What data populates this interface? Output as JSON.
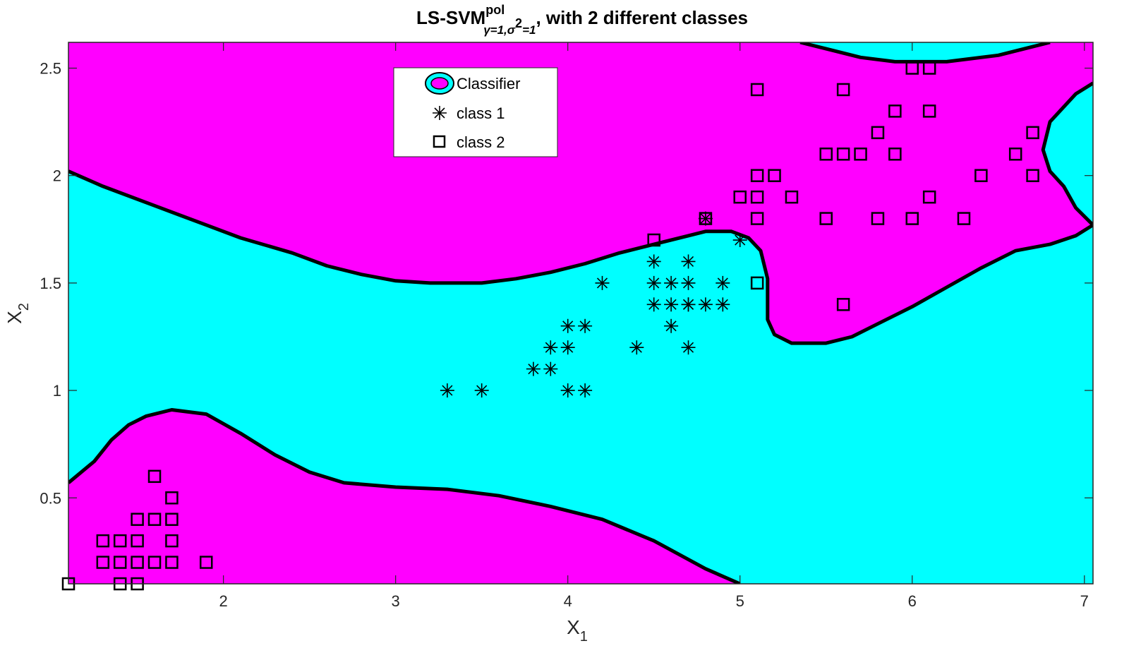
{
  "chart_data": {
    "type": "scatter",
    "title": {
      "main": "LS-SVM",
      "superscript": "pol",
      "subscript": "γ=1,σ",
      "subscript_power": "2",
      "subscript_end": "=1",
      "suffix": ", with 2 different classes"
    },
    "xlabel": "X",
    "xlabel_sub": "1",
    "ylabel": "X",
    "ylabel_sub": "2",
    "xlim": [
      1.1,
      7.05
    ],
    "ylim": [
      0.1,
      2.62
    ],
    "xticks": [
      2,
      3,
      4,
      5,
      6,
      7
    ],
    "yticks": [
      0.5,
      1,
      1.5,
      2,
      2.5
    ],
    "grid": false,
    "legend_position": "top-center",
    "legend": [
      "Classifier",
      "class 1",
      "class 2"
    ],
    "colors": {
      "class_region": "#ff00ff",
      "other_region": "#00ffff",
      "boundary": "#000000",
      "markers": "#000000"
    },
    "decision_boundaries": [
      {
        "name": "upper",
        "points": [
          [
            1.1,
            2.02
          ],
          [
            1.3,
            1.95
          ],
          [
            1.6,
            1.86
          ],
          [
            1.9,
            1.77
          ],
          [
            2.1,
            1.71
          ],
          [
            2.4,
            1.64
          ],
          [
            2.6,
            1.58
          ],
          [
            2.8,
            1.54
          ],
          [
            3.0,
            1.51
          ],
          [
            3.2,
            1.5
          ],
          [
            3.5,
            1.5
          ],
          [
            3.7,
            1.52
          ],
          [
            3.9,
            1.55
          ],
          [
            4.1,
            1.59
          ],
          [
            4.3,
            1.64
          ],
          [
            4.5,
            1.68
          ],
          [
            4.7,
            1.72
          ],
          [
            4.8,
            1.74
          ],
          [
            4.95,
            1.74
          ],
          [
            5.05,
            1.71
          ],
          [
            5.12,
            1.65
          ],
          [
            5.16,
            1.52
          ],
          [
            5.16,
            1.33
          ],
          [
            5.2,
            1.26
          ],
          [
            5.3,
            1.22
          ],
          [
            5.5,
            1.22
          ],
          [
            5.65,
            1.25
          ],
          [
            5.8,
            1.31
          ],
          [
            6.0,
            1.39
          ],
          [
            6.2,
            1.48
          ],
          [
            6.4,
            1.57
          ],
          [
            6.6,
            1.65
          ],
          [
            6.8,
            1.68
          ],
          [
            6.95,
            1.72
          ],
          [
            7.05,
            1.77
          ],
          [
            6.95,
            1.85
          ],
          [
            6.88,
            1.95
          ],
          [
            6.8,
            2.02
          ],
          [
            6.76,
            2.12
          ],
          [
            6.8,
            2.25
          ],
          [
            6.95,
            2.38
          ],
          [
            7.05,
            2.43
          ]
        ]
      },
      {
        "name": "top",
        "points": [
          [
            5.35,
            2.62
          ],
          [
            5.5,
            2.59
          ],
          [
            5.7,
            2.55
          ],
          [
            5.9,
            2.53
          ],
          [
            6.2,
            2.53
          ],
          [
            6.5,
            2.56
          ],
          [
            6.7,
            2.6
          ],
          [
            6.8,
            2.62
          ]
        ]
      },
      {
        "name": "lower",
        "points": [
          [
            1.1,
            0.57
          ],
          [
            1.25,
            0.67
          ],
          [
            1.35,
            0.77
          ],
          [
            1.45,
            0.84
          ],
          [
            1.55,
            0.88
          ],
          [
            1.7,
            0.91
          ],
          [
            1.9,
            0.89
          ],
          [
            2.1,
            0.8
          ],
          [
            2.3,
            0.7
          ],
          [
            2.5,
            0.62
          ],
          [
            2.7,
            0.57
          ],
          [
            3.0,
            0.55
          ],
          [
            3.3,
            0.54
          ],
          [
            3.6,
            0.51
          ],
          [
            3.9,
            0.46
          ],
          [
            4.2,
            0.4
          ],
          [
            4.5,
            0.3
          ],
          [
            4.8,
            0.17
          ],
          [
            5.0,
            0.1
          ]
        ]
      }
    ],
    "series": [
      {
        "name": "class 1",
        "marker": "asterisk",
        "x": [
          3.3,
          3.5,
          3.8,
          3.9,
          3.9,
          4.0,
          4.0,
          4.0,
          4.1,
          4.1,
          4.2,
          4.4,
          4.5,
          4.5,
          4.5,
          4.6,
          4.6,
          4.6,
          4.7,
          4.7,
          4.7,
          4.7,
          4.7,
          4.8,
          4.8,
          4.9,
          4.9,
          5.0
        ],
        "y": [
          1.0,
          1.0,
          1.1,
          1.1,
          1.2,
          1.0,
          1.2,
          1.3,
          1.0,
          1.3,
          1.5,
          1.2,
          1.4,
          1.5,
          1.6,
          1.3,
          1.4,
          1.5,
          1.2,
          1.4,
          1.5,
          1.6,
          1.4,
          1.4,
          1.8,
          1.4,
          1.5,
          1.7
        ]
      },
      {
        "name": "class 2",
        "marker": "square",
        "x": [
          1.1,
          1.4,
          1.5,
          1.3,
          1.4,
          1.5,
          1.6,
          1.7,
          1.9,
          1.3,
          1.4,
          1.5,
          1.7,
          1.5,
          1.6,
          1.7,
          1.7,
          1.6,
          4.5,
          4.8,
          5.0,
          5.1,
          5.1,
          5.1,
          5.1,
          5.1,
          5.2,
          5.3,
          5.5,
          5.5,
          5.6,
          5.6,
          5.6,
          5.7,
          5.8,
          5.8,
          5.9,
          5.9,
          6.0,
          6.0,
          6.1,
          6.1,
          6.1,
          6.3,
          6.4,
          6.6,
          6.7,
          6.7
        ],
        "y": [
          0.1,
          0.1,
          0.1,
          0.2,
          0.2,
          0.2,
          0.2,
          0.2,
          0.2,
          0.3,
          0.3,
          0.3,
          0.3,
          0.4,
          0.4,
          0.4,
          0.5,
          0.6,
          1.7,
          1.8,
          1.9,
          1.5,
          1.8,
          1.9,
          2.0,
          2.4,
          2.0,
          1.9,
          1.8,
          2.1,
          1.4,
          2.1,
          2.4,
          2.1,
          1.8,
          2.2,
          2.1,
          2.3,
          1.8,
          2.5,
          1.9,
          2.3,
          2.5,
          1.8,
          2.0,
          2.1,
          2.0,
          2.2
        ]
      }
    ]
  }
}
